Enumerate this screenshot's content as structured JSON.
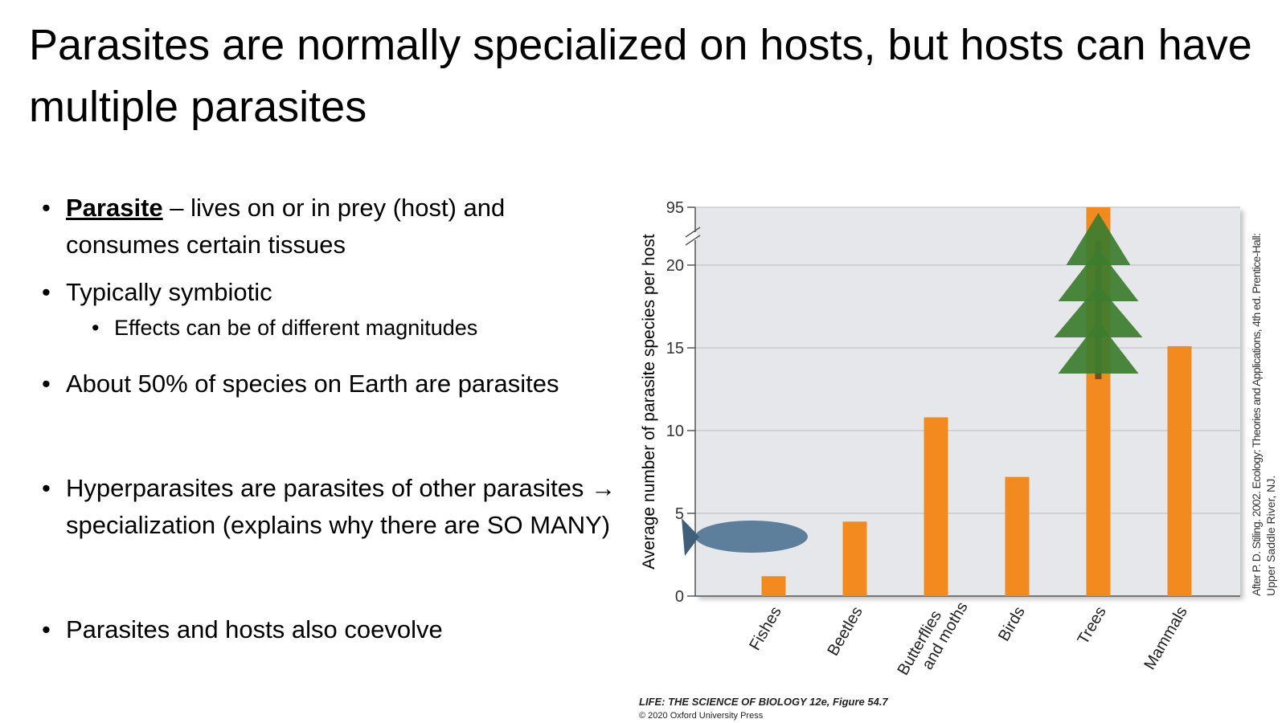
{
  "slide": {
    "title": "Parasites are normally specialized on hosts, but hosts can have multiple parasites",
    "bullets": [
      {
        "term": "Parasite",
        "text": "– lives on or in prey (host) and consumes certain tissues"
      },
      {
        "text": "Typically symbiotic",
        "sub": [
          "Effects can be of different magnitudes"
        ]
      },
      {
        "text": "About 50% of species on Earth are parasites"
      },
      {
        "text": "Hyperparasites are parasites of other parasites → specialization (explains why there are SO MANY)"
      },
      {
        "text": "Parasites and hosts also coevolve"
      }
    ]
  },
  "chart_data": {
    "type": "bar",
    "y_label": "Average number of parasite species per host",
    "categories": [
      "Fishes",
      "Beetles",
      "Butterflies and moths",
      "Birds",
      "Trees",
      "Mammals"
    ],
    "values": [
      1.2,
      4.5,
      10.8,
      7.2,
      95,
      15.1
    ],
    "color": "#f28a1f",
    "ylim": [
      0,
      95
    ],
    "yticks": [
      0,
      5,
      10,
      15,
      20,
      95
    ],
    "axis_break": true,
    "grid": true,
    "credit": [
      "After P. D. Stiling. 2002. Ecology: Theories and Applications, 4th ed. Prentice-Hall:",
      "Upper Saddle River, NJ."
    ],
    "source": [
      "LIFE: THE SCIENCE OF BIOLOGY 12e, Figure 54.7",
      "© 2020 Oxford University Press"
    ]
  }
}
